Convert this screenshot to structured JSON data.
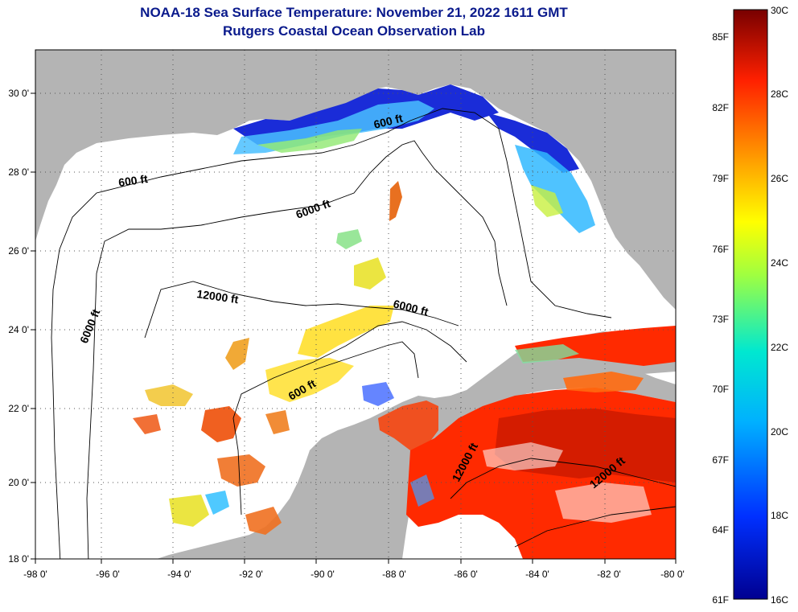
{
  "title": "NOAA-18 Sea Surface Temperature:  November 21, 2022 1611 GMT",
  "subtitle": "Rutgers Coastal Ocean Observation Lab",
  "x_ticks": [
    "-98 0'",
    "-96 0'",
    "-94 0'",
    "-92 0'",
    "-90 0'",
    "-88 0'",
    "-86 0'",
    "-84 0'",
    "-82 0'",
    "-80 0'"
  ],
  "y_ticks": [
    "30 0'",
    "28 0'",
    "26 0'",
    "24 0'",
    "22 0'",
    "20 0'",
    "18 0'"
  ],
  "contour_labels": {
    "c600_nw": "600 ft",
    "c600_ne": "600 ft",
    "c600_c": "600 ft",
    "c6000_w": "6000 ft",
    "c6000_n": "6000 ft",
    "c6000_c": "6000 ft",
    "c12000_w": "12000 ft",
    "c12000_car1": "12000 ft",
    "c12000_car2": "12000 ft"
  },
  "colorbar": {
    "f_labels": [
      "85F",
      "82F",
      "79F",
      "76F",
      "73F",
      "70F",
      "67F",
      "64F",
      "61F"
    ],
    "c_labels": [
      "30C",
      "28C",
      "26C",
      "24C",
      "22C",
      "20C",
      "18C",
      "16C"
    ],
    "colors": [
      "#7a0000",
      "#ff1a00",
      "#ff7a00",
      "#ffee00",
      "#33dd88",
      "#00c8ff",
      "#0050ff",
      "#000090"
    ]
  },
  "colors": {
    "land": "#b4b4b4",
    "ocean": "#ffffff",
    "grid": "#555555"
  }
}
